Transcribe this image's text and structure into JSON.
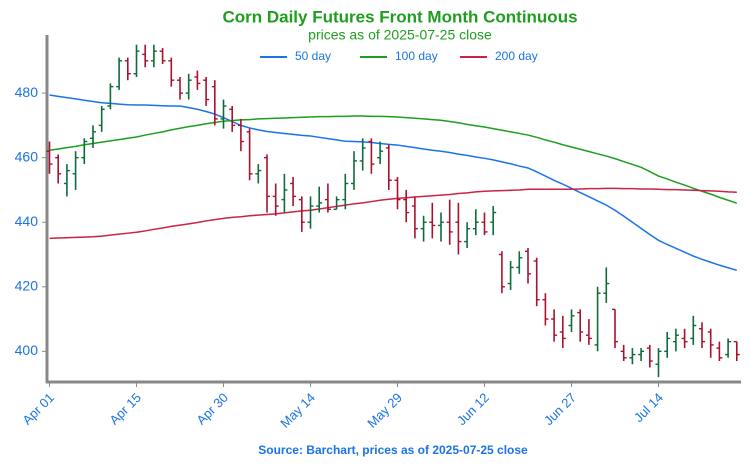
{
  "chart_data": {
    "type": "ohlc",
    "title": "Corn Daily Futures Front Month Continuous",
    "subtitle": "prices as of 2025-07-25 close",
    "source": "Source: Barchart, prices as of 2025-07-25 close",
    "categories": [
      "Apr 01",
      null,
      null,
      null,
      null,
      null,
      null,
      null,
      null,
      null,
      "Apr 15",
      null,
      null,
      null,
      null,
      null,
      null,
      null,
      null,
      null,
      "Apr 30",
      null,
      null,
      null,
      null,
      null,
      null,
      null,
      null,
      null,
      "May 14",
      null,
      null,
      null,
      null,
      null,
      null,
      null,
      null,
      null,
      "May 29",
      null,
      null,
      null,
      null,
      null,
      null,
      null,
      null,
      null,
      "Jun 12",
      null,
      null,
      null,
      null,
      null,
      null,
      null,
      null,
      null,
      "Jun 27",
      null,
      null,
      null,
      null,
      null,
      null,
      null,
      null,
      null,
      "Jul 14",
      null,
      null,
      null,
      null,
      null,
      null,
      null,
      null,
      null
    ],
    "open": [
      462,
      460,
      452,
      455,
      460,
      466,
      470,
      476,
      482,
      490,
      486,
      492,
      490,
      493,
      490,
      484,
      480,
      485,
      484,
      482,
      472,
      475,
      470,
      468,
      455,
      460,
      448,
      447,
      452,
      447,
      440,
      445,
      447,
      444,
      447,
      452,
      459,
      465,
      460,
      463,
      453,
      447,
      445,
      438,
      440,
      439,
      440,
      440,
      434,
      438,
      440,
      440,
      430,
      421,
      426,
      431,
      428,
      416,
      410,
      406,
      408,
      412,
      405,
      402,
      418,
      413,
      400,
      398,
      399,
      401,
      396,
      400,
      403,
      404,
      404,
      407,
      406,
      401,
      399,
      403
    ],
    "high": [
      465,
      461,
      458,
      462,
      466,
      470,
      476,
      483,
      491,
      491,
      495,
      495,
      495,
      494,
      491,
      485,
      486,
      487,
      485,
      484,
      478,
      476,
      472,
      469,
      458,
      461,
      452,
      455,
      454,
      448,
      448,
      451,
      452,
      448,
      455,
      462,
      466,
      466,
      465,
      464,
      454,
      450,
      448,
      442,
      446,
      443,
      447,
      446,
      440,
      444,
      443,
      445,
      431,
      428,
      431,
      432,
      429,
      418,
      413,
      411,
      413,
      413,
      410,
      420,
      426,
      413,
      402,
      401,
      401,
      402,
      401,
      406,
      407,
      407,
      411,
      409,
      407,
      403,
      404,
      403
    ],
    "low": [
      455,
      452,
      448,
      450,
      458,
      463,
      468,
      475,
      481,
      484,
      485,
      488,
      488,
      489,
      482,
      478,
      478,
      481,
      476,
      470,
      469,
      468,
      462,
      453,
      452,
      443,
      442,
      443,
      445,
      437,
      438,
      443,
      443,
      444,
      444,
      450,
      456,
      455,
      458,
      450,
      444,
      440,
      435,
      434,
      435,
      434,
      433,
      430,
      432,
      436,
      436,
      436,
      418,
      419,
      424,
      421,
      414,
      408,
      403,
      401,
      406,
      403,
      402,
      400,
      415,
      401,
      397,
      396,
      397,
      395,
      392,
      398,
      400,
      401,
      402,
      401,
      398,
      397,
      398,
      397
    ],
    "close": [
      458,
      455,
      456,
      460,
      465,
      468,
      475,
      482,
      490,
      486,
      493,
      490,
      493,
      490,
      484,
      480,
      484,
      483,
      478,
      472,
      476,
      470,
      465,
      455,
      456,
      448,
      445,
      450,
      448,
      440,
      445,
      446,
      444,
      447,
      452,
      459,
      463,
      458,
      462,
      453,
      447,
      443,
      438,
      440,
      439,
      440,
      437,
      434,
      438,
      440,
      437,
      443,
      420,
      426,
      429,
      424,
      416,
      410,
      405,
      404,
      411,
      406,
      404,
      418,
      421,
      403,
      398,
      399,
      400,
      397,
      400,
      404,
      405,
      403,
      408,
      403,
      402,
      398,
      403,
      399
    ],
    "up_color": "#0e6b3a",
    "down_color": "#a8122e",
    "lines": [
      {
        "name": "50 day",
        "color": "#1a73e8",
        "values": [
          479.4,
          479,
          478.6,
          478.2,
          477.8,
          477.4,
          477,
          476.8,
          476.6,
          476.4,
          476.3,
          476.3,
          476.2,
          476.1,
          476,
          476,
          475.5,
          475,
          474.3,
          473.5,
          472.4,
          471.2,
          470,
          469.2,
          468.6,
          468.1,
          467.8,
          467.5,
          467.2,
          466.9,
          466.7,
          466.3,
          465.9,
          465.5,
          465.1,
          465,
          464.9,
          464.7,
          464.4,
          464.1,
          463.9,
          463.5,
          463.1,
          462.7,
          462.3,
          462,
          461.6,
          461.1,
          460.7,
          460.2,
          459.8,
          459.3,
          458.7,
          458.1,
          457.4,
          456.8,
          455.6,
          454.3,
          453,
          451.8,
          450.5,
          449.2,
          447.9,
          446.6,
          445.3,
          443.7,
          441.9,
          440,
          438.1,
          436.2,
          434.4,
          433.1,
          431.9,
          430.7,
          429.5,
          428.5,
          427.6,
          426.7,
          425.9,
          425.1
        ]
      },
      {
        "name": "100 day",
        "color": "#1e9e1e",
        "values": [
          462.3,
          462.7,
          463.1,
          463.5,
          464,
          464.4,
          464.8,
          465.2,
          465.6,
          466,
          466.4,
          467,
          467.5,
          468,
          468.6,
          469.1,
          469.6,
          470,
          470.5,
          470.9,
          471.3,
          471.5,
          471.7,
          471.8,
          472,
          472.1,
          472.2,
          472.3,
          472.4,
          472.5,
          472.6,
          472.7,
          472.7,
          472.8,
          472.8,
          472.9,
          472.9,
          472.8,
          472.8,
          472.7,
          472.6,
          472.4,
          472.2,
          472,
          471.8,
          471.6,
          471.2,
          470.8,
          470.3,
          469.9,
          469.5,
          469,
          468.5,
          468,
          467.5,
          467,
          466.3,
          465.5,
          464.8,
          464,
          463.3,
          462.6,
          461.9,
          461.2,
          460.5,
          459.7,
          458.8,
          457.9,
          457,
          455.7,
          454.3,
          453.4,
          452.4,
          451.5,
          450.5,
          449.6,
          448.7,
          447.7,
          446.8,
          445.9
        ]
      },
      {
        "name": "200 day",
        "color": "#cc2244",
        "values": [
          435,
          435.1,
          435.2,
          435.3,
          435.4,
          435.5,
          435.7,
          436,
          436.3,
          436.6,
          436.9,
          437.3,
          437.8,
          438.2,
          438.7,
          439.1,
          439.5,
          439.9,
          440.4,
          440.8,
          441.2,
          441.5,
          441.7,
          442,
          442.2,
          442.4,
          442.6,
          442.9,
          443.2,
          443.5,
          443.7,
          444.1,
          444.5,
          444.9,
          445.3,
          445.7,
          446,
          446.4,
          446.8,
          447.1,
          447.4,
          447.6,
          447.8,
          448,
          448.2,
          448.4,
          448.6,
          448.9,
          449.1,
          449.4,
          449.6,
          449.7,
          449.8,
          449.9,
          450,
          450.2,
          450.2,
          450.2,
          450.2,
          450.2,
          450.2,
          450.3,
          450.4,
          450.4,
          450.5,
          450.5,
          450.4,
          450.4,
          450.3,
          450.3,
          450.2,
          450.1,
          450.1,
          450,
          449.9,
          449.8,
          449.7,
          449.6,
          449.4,
          449.3
        ]
      }
    ],
    "ylim": [
      390.5,
      498
    ],
    "yticks": [
      400,
      420,
      440,
      460,
      480
    ],
    "grid": false,
    "legend": "upper center"
  }
}
